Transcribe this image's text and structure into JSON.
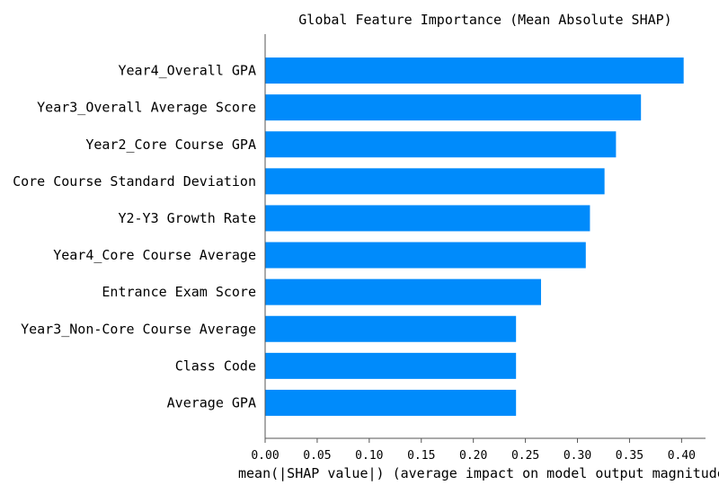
{
  "chart_data": {
    "type": "bar",
    "orientation": "horizontal",
    "title": "Global Feature Importance (Mean Absolute SHAP)",
    "xlabel": "mean(|SHAP value|) (average impact on model output magnitude)",
    "ylabel": "",
    "categories": [
      "Year4_Overall GPA",
      "Year3_Overall Average Score",
      "Year2_Core Course GPA",
      "Core Course Standard Deviation",
      "Y2-Y3 Growth Rate",
      "Year4_Core Course Average",
      "Entrance Exam Score",
      "Year3_Non-Core Course Average",
      "Class Code",
      "Average GPA"
    ],
    "values": [
      0.402,
      0.361,
      0.337,
      0.326,
      0.312,
      0.308,
      0.265,
      0.241,
      0.241,
      0.241
    ],
    "xlim": [
      0,
      0.423
    ],
    "xticks": [
      0.0,
      0.05,
      0.1,
      0.15,
      0.2,
      0.25,
      0.3,
      0.35,
      0.4
    ],
    "xtick_labels": [
      "0.00",
      "0.05",
      "0.10",
      "0.15",
      "0.20",
      "0.25",
      "0.30",
      "0.35",
      "0.40"
    ],
    "bar_color": "#008bfb",
    "grid": false,
    "legend": "none"
  }
}
